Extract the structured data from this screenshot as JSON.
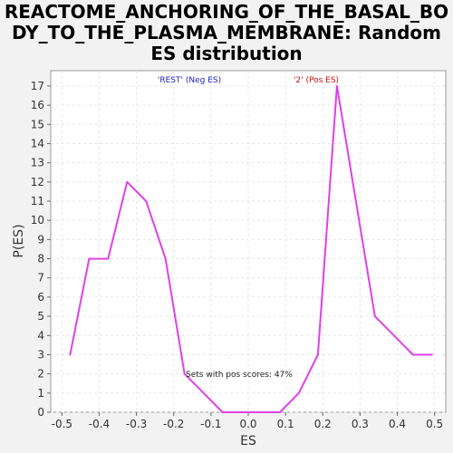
{
  "chart_data": {
    "type": "line",
    "title_lines": [
      "REACTOME_ANCHORING_OF_THE_BASAL_BO",
      "DY_TO_THE_PLASMA_MEMBRANE: Random",
      "ES distribution"
    ],
    "xlabel": "ES",
    "ylabel": "P(ES)",
    "xlim": [
      -0.53,
      0.53
    ],
    "ylim": [
      0,
      17.8
    ],
    "x_ticks": [
      -0.5,
      -0.4,
      -0.3,
      -0.2,
      -0.1,
      0.0,
      0.1,
      0.2,
      0.3,
      0.4,
      0.5
    ],
    "x_tick_labels": [
      "-0.5",
      "-0.4",
      "-0.3",
      "-0.2",
      "-0.1",
      "0.0",
      "0.1",
      "0.2",
      "0.3",
      "0.4",
      "0.5"
    ],
    "y_ticks": [
      0,
      1,
      2,
      3,
      4,
      5,
      6,
      7,
      8,
      9,
      10,
      11,
      12,
      13,
      14,
      15,
      16,
      17
    ],
    "y_tick_labels": [
      "0",
      "1",
      "2",
      "3",
      "4",
      "5",
      "6",
      "7",
      "8",
      "9",
      "10",
      "11",
      "12",
      "13",
      "14",
      "15",
      "16",
      "17"
    ],
    "grid": true,
    "legend": [
      {
        "label": "'REST' (Neg ES)",
        "color": "#2020c0"
      },
      {
        "label": "'2' (Pos ES)",
        "color": "#d01010"
      }
    ],
    "annotation": "Sets with pos scores: 47%",
    "series": [
      {
        "color": "#e040e8",
        "x": [
          -0.478,
          -0.427,
          -0.376,
          -0.325,
          -0.274,
          -0.222,
          -0.171,
          -0.069,
          0.085,
          0.136,
          0.187,
          0.238,
          0.34,
          0.442,
          0.493
        ],
        "y": [
          3,
          8,
          8,
          12,
          11,
          8,
          2,
          0,
          0,
          1,
          3,
          17,
          5,
          3,
          3
        ]
      }
    ]
  }
}
